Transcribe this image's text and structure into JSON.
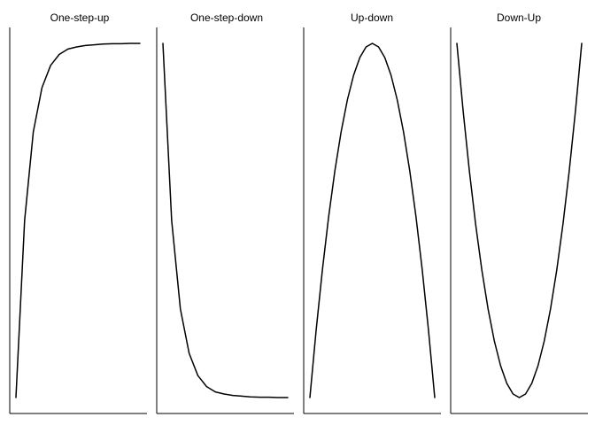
{
  "chart_data": [
    {
      "type": "line",
      "title": "One-step-up",
      "xlabel": "",
      "ylabel": "",
      "grid": false,
      "xlim": [
        0,
        1
      ],
      "ylim": [
        0,
        1
      ],
      "x": [
        0.0,
        0.07,
        0.14,
        0.21,
        0.28,
        0.35,
        0.42,
        0.49,
        0.56,
        0.63,
        0.7,
        0.78,
        0.85,
        0.92,
        1.0
      ],
      "series": [
        {
          "values": [
            0.0,
            0.5,
            0.75,
            0.875,
            0.938,
            0.969,
            0.984,
            0.99,
            0.994,
            0.996,
            0.998,
            0.999,
            0.999,
            1.0,
            1.0
          ]
        }
      ]
    },
    {
      "type": "line",
      "title": "One-step-down",
      "xlabel": "",
      "ylabel": "",
      "grid": false,
      "xlim": [
        0,
        1
      ],
      "ylim": [
        0,
        1
      ],
      "x": [
        0.0,
        0.07,
        0.14,
        0.21,
        0.28,
        0.35,
        0.42,
        0.49,
        0.56,
        0.63,
        0.7,
        0.78,
        0.85,
        0.92,
        1.0
      ],
      "series": [
        {
          "values": [
            1.0,
            0.5,
            0.25,
            0.125,
            0.062,
            0.031,
            0.016,
            0.01,
            0.006,
            0.004,
            0.002,
            0.001,
            0.001,
            0.0,
            0.0
          ]
        }
      ]
    },
    {
      "type": "line",
      "title": "Up-down",
      "xlabel": "",
      "ylabel": "",
      "grid": false,
      "xlim": [
        0,
        1
      ],
      "ylim": [
        0,
        1
      ],
      "x": [
        0.0,
        0.05,
        0.1,
        0.15,
        0.2,
        0.25,
        0.3,
        0.35,
        0.4,
        0.45,
        0.5,
        0.55,
        0.6,
        0.65,
        0.7,
        0.75,
        0.8,
        0.85,
        0.9,
        0.95,
        1.0
      ],
      "series": [
        {
          "values": [
            0.0,
            0.19,
            0.36,
            0.51,
            0.64,
            0.75,
            0.84,
            0.91,
            0.96,
            0.99,
            1.0,
            0.99,
            0.96,
            0.91,
            0.84,
            0.75,
            0.64,
            0.51,
            0.36,
            0.19,
            0.0
          ]
        }
      ]
    },
    {
      "type": "line",
      "title": "Down-Up",
      "xlabel": "",
      "ylabel": "",
      "grid": false,
      "xlim": [
        0,
        1
      ],
      "ylim": [
        0,
        1
      ],
      "x": [
        0.0,
        0.05,
        0.1,
        0.15,
        0.2,
        0.25,
        0.3,
        0.35,
        0.4,
        0.45,
        0.5,
        0.55,
        0.6,
        0.65,
        0.7,
        0.75,
        0.8,
        0.85,
        0.9,
        0.95,
        1.0
      ],
      "series": [
        {
          "values": [
            1.0,
            0.81,
            0.64,
            0.49,
            0.36,
            0.25,
            0.16,
            0.09,
            0.04,
            0.01,
            0.0,
            0.01,
            0.04,
            0.09,
            0.16,
            0.25,
            0.36,
            0.49,
            0.64,
            0.81,
            1.0
          ]
        }
      ]
    }
  ]
}
